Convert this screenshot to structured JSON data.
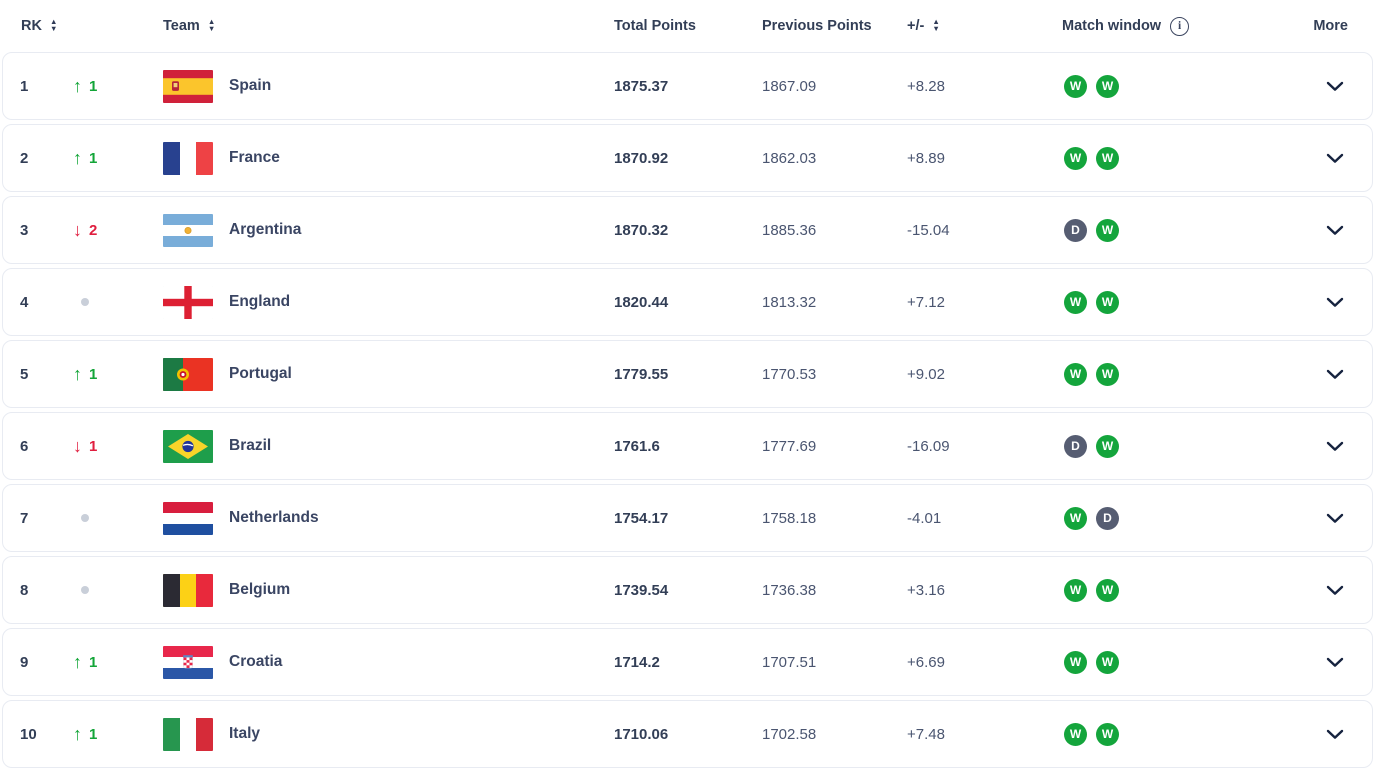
{
  "table": {
    "columns": {
      "rank_label": "RK",
      "team_label": "Team",
      "total_label": "Total Points",
      "previous_label": "Previous Points",
      "diff_label": "+/-",
      "window_label": "Match window",
      "more_label": "More"
    },
    "rows": [
      {
        "rank": "1",
        "movement": {
          "direction": "up",
          "places": "1"
        },
        "team": "Spain",
        "flag": "spain",
        "total": "1875.37",
        "previous": "1867.09",
        "diff": "+8.28",
        "window": [
          "W",
          "W"
        ]
      },
      {
        "rank": "2",
        "movement": {
          "direction": "up",
          "places": "1"
        },
        "team": "France",
        "flag": "france",
        "total": "1870.92",
        "previous": "1862.03",
        "diff": "+8.89",
        "window": [
          "W",
          "W"
        ]
      },
      {
        "rank": "3",
        "movement": {
          "direction": "down",
          "places": "2"
        },
        "team": "Argentina",
        "flag": "argentina",
        "total": "1870.32",
        "previous": "1885.36",
        "diff": "-15.04",
        "window": [
          "D",
          "W"
        ]
      },
      {
        "rank": "4",
        "movement": {
          "direction": "none",
          "places": ""
        },
        "team": "England",
        "flag": "england",
        "total": "1820.44",
        "previous": "1813.32",
        "diff": "+7.12",
        "window": [
          "W",
          "W"
        ]
      },
      {
        "rank": "5",
        "movement": {
          "direction": "up",
          "places": "1"
        },
        "team": "Portugal",
        "flag": "portugal",
        "total": "1779.55",
        "previous": "1770.53",
        "diff": "+9.02",
        "window": [
          "W",
          "W"
        ]
      },
      {
        "rank": "6",
        "movement": {
          "direction": "down",
          "places": "1"
        },
        "team": "Brazil",
        "flag": "brazil",
        "total": "1761.6",
        "previous": "1777.69",
        "diff": "-16.09",
        "window": [
          "D",
          "W"
        ]
      },
      {
        "rank": "7",
        "movement": {
          "direction": "none",
          "places": ""
        },
        "team": "Netherlands",
        "flag": "netherlands",
        "total": "1754.17",
        "previous": "1758.18",
        "diff": "-4.01",
        "window": [
          "W",
          "D"
        ]
      },
      {
        "rank": "8",
        "movement": {
          "direction": "none",
          "places": ""
        },
        "team": "Belgium",
        "flag": "belgium",
        "total": "1739.54",
        "previous": "1736.38",
        "diff": "+3.16",
        "window": [
          "W",
          "W"
        ]
      },
      {
        "rank": "9",
        "movement": {
          "direction": "up",
          "places": "1"
        },
        "team": "Croatia",
        "flag": "croatia",
        "total": "1714.2",
        "previous": "1707.51",
        "diff": "+6.69",
        "window": [
          "W",
          "W"
        ]
      },
      {
        "rank": "10",
        "movement": {
          "direction": "up",
          "places": "1"
        },
        "team": "Italy",
        "flag": "italy",
        "total": "1710.06",
        "previous": "1702.58",
        "diff": "+7.48",
        "window": [
          "W",
          "W"
        ]
      }
    ]
  },
  "colors": {
    "text_primary": "#323e56",
    "text_secondary": "#4a5570",
    "rank_up_green": "#13a538",
    "rank_down_red": "#e01e3f",
    "badge_win_green": "#14a53c",
    "badge_draw_gray": "#565d72",
    "card_border": "#e8ebf2"
  }
}
